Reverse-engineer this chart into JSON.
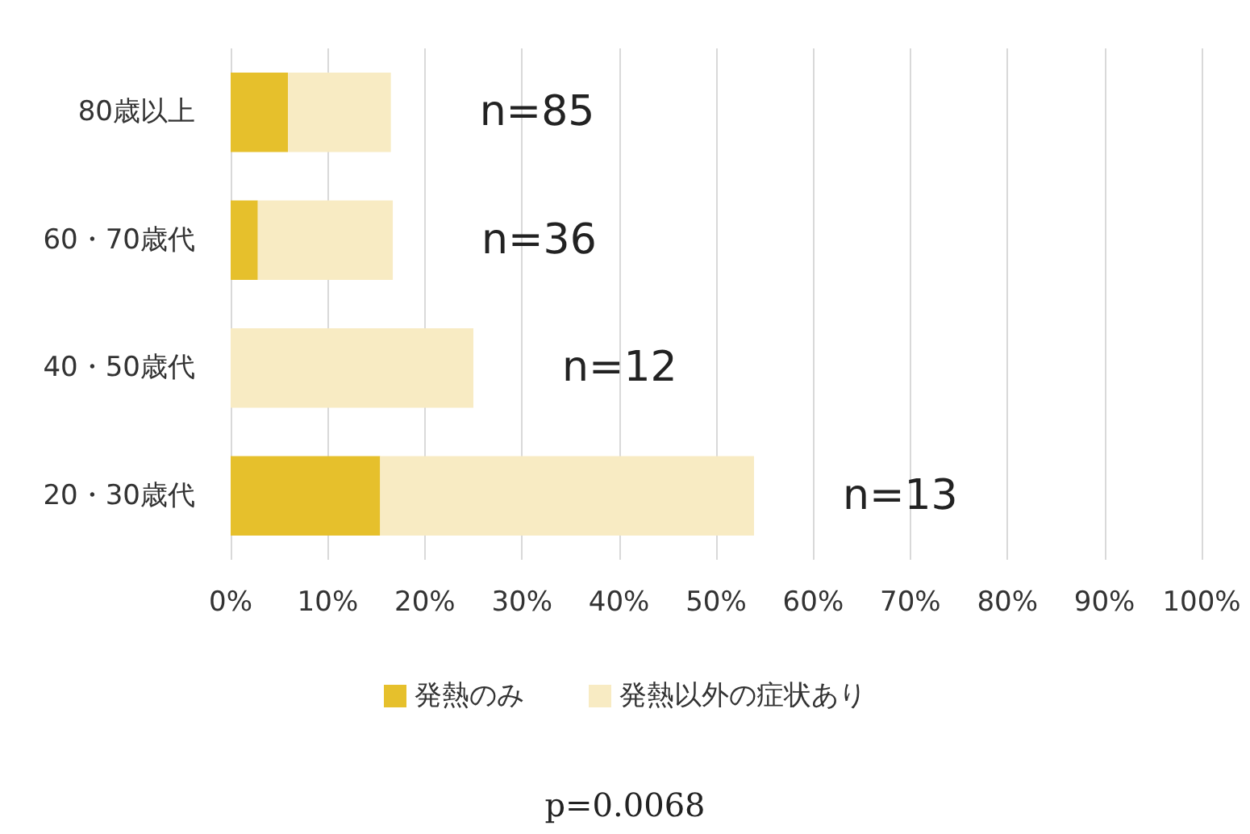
{
  "chart_data": {
    "type": "bar",
    "orientation": "horizontal",
    "stacked": true,
    "categories": [
      "80歳以上",
      "60・70歳代",
      "40・50歳代",
      "20・30歳代"
    ],
    "series": [
      {
        "name": "発熱のみ",
        "color": "#e6c02c",
        "values": [
          5.9,
          2.8,
          0,
          15.4
        ]
      },
      {
        "name": "発熱以外の症状あり",
        "color": "#f8ebc3",
        "values": [
          10.6,
          13.9,
          25,
          38.5
        ]
      }
    ],
    "xlim": [
      0,
      100
    ],
    "xticks": [
      {
        "value": 0,
        "label": "0%"
      },
      {
        "value": 10,
        "label": "10%"
      },
      {
        "value": 20,
        "label": "20%"
      },
      {
        "value": 30,
        "label": "30%"
      },
      {
        "value": 40,
        "label": "40%"
      },
      {
        "value": 50,
        "label": "50%"
      },
      {
        "value": 60,
        "label": "60%"
      },
      {
        "value": 70,
        "label": "70%"
      },
      {
        "value": 80,
        "label": "80%"
      },
      {
        "value": 90,
        "label": "90%"
      },
      {
        "value": 100,
        "label": "100%"
      }
    ],
    "grid": "x",
    "legend": "bottom",
    "annotations": [
      "n=85",
      "n=36",
      "n=12",
      "n=13",
      "p=0.0068"
    ]
  }
}
